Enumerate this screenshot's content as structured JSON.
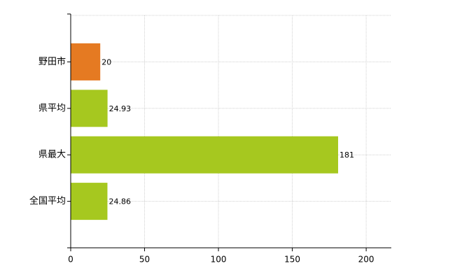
{
  "chart_data": {
    "type": "bar",
    "orientation": "horizontal",
    "categories": [
      "野田市",
      "県平均",
      "県最大",
      "全国平均"
    ],
    "values": [
      20,
      24.93,
      181,
      24.86
    ],
    "colors": [
      "#e57a22",
      "#a6c81f",
      "#a6c81f",
      "#a6c81f"
    ],
    "xlim": [
      0,
      217
    ],
    "xticks": [
      0,
      50,
      100,
      150,
      200
    ],
    "grid": true,
    "data_labels": true
  }
}
